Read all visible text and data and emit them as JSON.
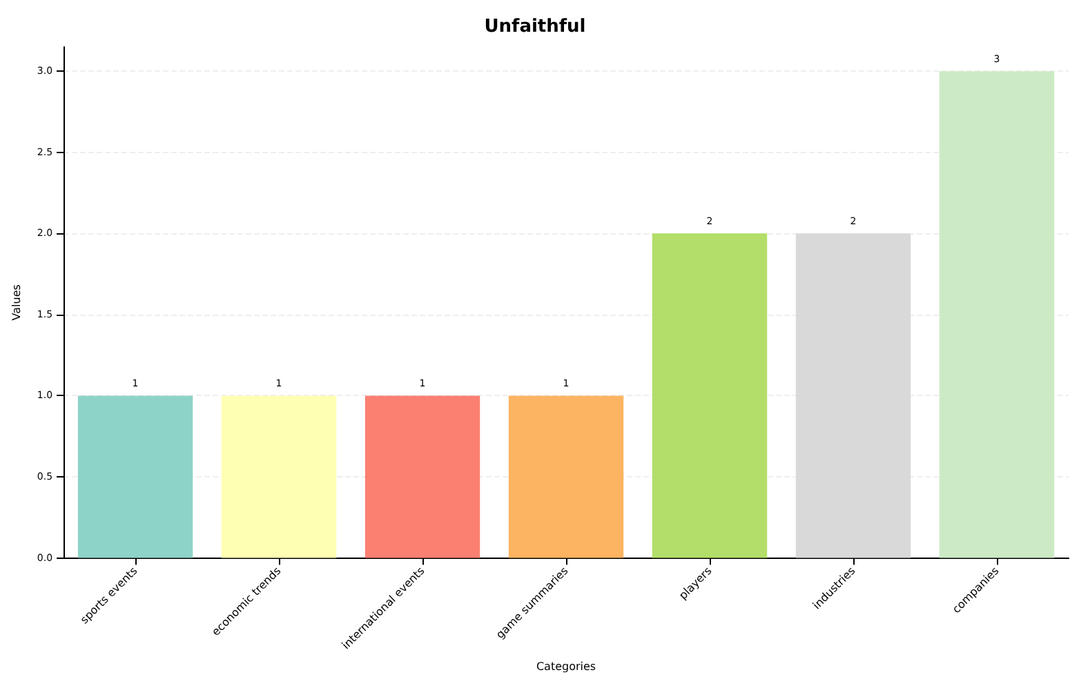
{
  "chart_data": {
    "type": "bar",
    "title": "Unfaithful",
    "xlabel": "Categories",
    "ylabel": "Values",
    "categories": [
      "sports events",
      "economic trends",
      "international events",
      "game summaries",
      "players",
      "industries",
      "companies"
    ],
    "values": [
      1,
      1,
      1,
      1,
      2,
      2,
      3
    ],
    "colors": [
      "#8dd3c7",
      "#ffffb3",
      "#fb8072",
      "#fdb462",
      "#b3de69",
      "#d9d9d9",
      "#ccebc5"
    ],
    "ylim": [
      0,
      3.15
    ],
    "yticks": [
      {
        "value": 0,
        "label": "0.0"
      },
      0.5,
      {
        "value": 1,
        "label": "1.0"
      },
      1.5,
      {
        "value": 2,
        "label": "2.0"
      },
      2.5,
      {
        "value": 3,
        "label": "3.0"
      }
    ],
    "grid": "y",
    "data_labels": true
  }
}
